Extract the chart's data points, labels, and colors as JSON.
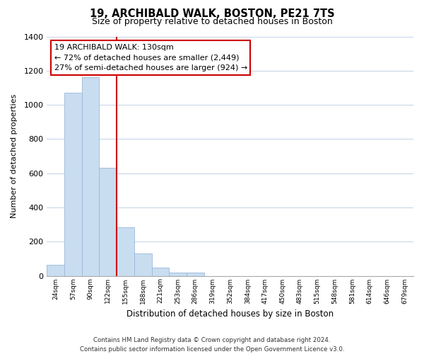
{
  "title": "19, ARCHIBALD WALK, BOSTON, PE21 7TS",
  "subtitle": "Size of property relative to detached houses in Boston",
  "xlabel": "Distribution of detached houses by size in Boston",
  "ylabel": "Number of detached properties",
  "bar_values": [
    65,
    1070,
    1160,
    630,
    285,
    130,
    48,
    20,
    20,
    0,
    0,
    0,
    0,
    0,
    0,
    0,
    0,
    0,
    0,
    0,
    0
  ],
  "bar_labels": [
    "24sqm",
    "57sqm",
    "90sqm",
    "122sqm",
    "155sqm",
    "188sqm",
    "221sqm",
    "253sqm",
    "286sqm",
    "319sqm",
    "352sqm",
    "384sqm",
    "417sqm",
    "450sqm",
    "483sqm",
    "515sqm",
    "548sqm",
    "581sqm",
    "614sqm",
    "646sqm",
    "679sqm"
  ],
  "bar_color": "#c9ddf0",
  "bar_edge_color": "#9ab8d8",
  "vline_x": 3.5,
  "vline_color": "#cc0000",
  "ylim": [
    0,
    1400
  ],
  "yticks": [
    0,
    200,
    400,
    600,
    800,
    1000,
    1200,
    1400
  ],
  "annotation_title": "19 ARCHIBALD WALK: 130sqm",
  "annotation_line1": "← 72% of detached houses are smaller (2,449)",
  "annotation_line2": "27% of semi-detached houses are larger (924) →",
  "annotation_box_color": "#ffffff",
  "annotation_box_edge": "#cc0000",
  "footer_line1": "Contains HM Land Registry data © Crown copyright and database right 2024.",
  "footer_line2": "Contains public sector information licensed under the Open Government Licence v3.0.",
  "background_color": "#ffffff",
  "grid_color": "#c8d8e8"
}
